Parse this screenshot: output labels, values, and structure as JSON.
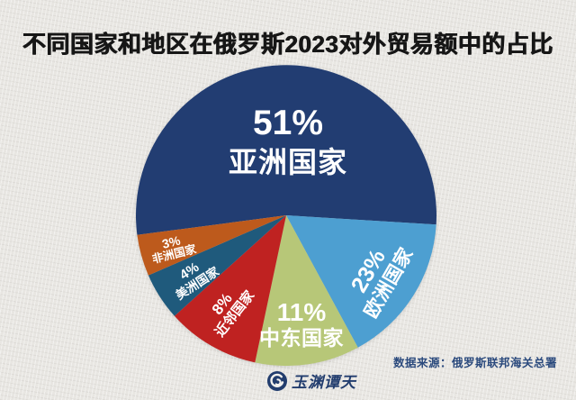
{
  "page": {
    "title": "不同国家和地区在俄罗斯2023对外贸易额中的占比",
    "source_note": "数据来源：俄罗斯联邦海关总署",
    "logo_text": "玉渊谭天"
  },
  "colors": {
    "background": "#e8e6e2",
    "title_text": "#161616",
    "slice_label_text": "#ffffff",
    "source_text": "#2b4a7d",
    "logo": "#223d6e"
  },
  "chart_data": {
    "type": "pie",
    "title": "不同国家和地区在俄罗斯2023对外贸易额中的占比",
    "unit": "percent",
    "legend_position": "labels-on-slices",
    "source": "数据来源：俄罗斯联邦海关总署",
    "slices": [
      {
        "name": "亚洲国家",
        "value": 51,
        "display": "51%",
        "color": "#223d72"
      },
      {
        "name": "欧洲国家",
        "value": 23,
        "display": "23%",
        "color": "#4d9fd1"
      },
      {
        "name": "中东国家",
        "value": 11,
        "display": "11%",
        "color": "#b7c778"
      },
      {
        "name": "近邻国家",
        "value": 8,
        "display": "8%",
        "color": "#bf2221"
      },
      {
        "name": "美洲国家",
        "value": 4,
        "display": "4%",
        "color": "#1f5a7c"
      },
      {
        "name": "非洲国家",
        "value": 3,
        "display": "3%",
        "color": "#bd5a1c"
      }
    ]
  }
}
